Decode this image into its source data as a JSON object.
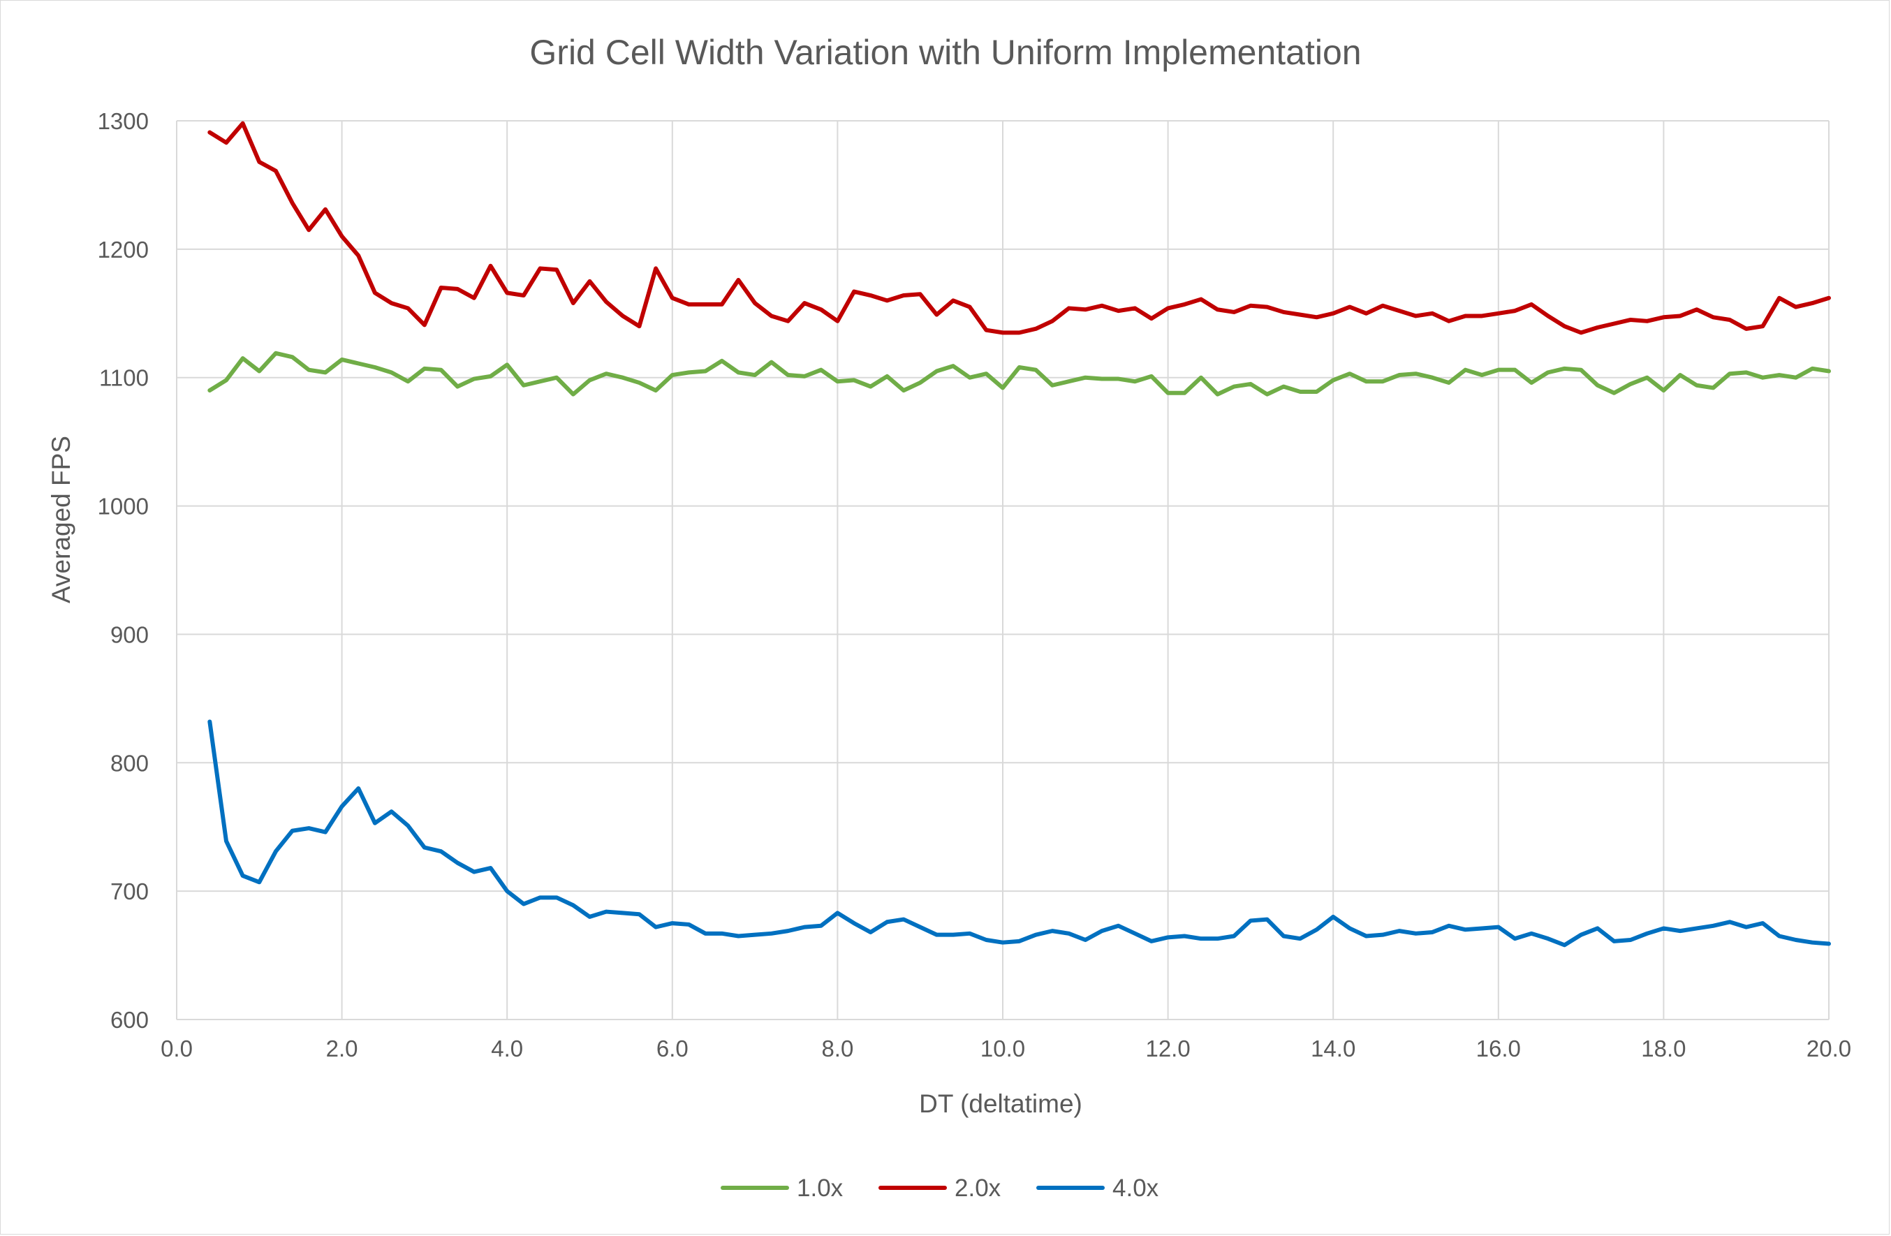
{
  "chart_data": {
    "type": "line",
    "title": "Grid Cell Width Variation with Uniform Implementation",
    "xlabel": "DT (deltatime)",
    "ylabel": "Averaged FPS",
    "xlim": [
      0,
      20
    ],
    "ylim": [
      600,
      1300
    ],
    "xticks": [
      "0.0",
      "2.0",
      "4.0",
      "6.0",
      "8.0",
      "10.0",
      "12.0",
      "14.0",
      "16.0",
      "18.0",
      "20.0"
    ],
    "yticks": [
      "600",
      "700",
      "800",
      "900",
      "1000",
      "1100",
      "1200",
      "1300"
    ],
    "grid": true,
    "legend_position": "bottom",
    "x": [
      0.4,
      0.6,
      0.8,
      1.0,
      1.2,
      1.4,
      1.6,
      1.8,
      2.0,
      2.2,
      2.4,
      2.6,
      2.8,
      3.0,
      3.2,
      3.4,
      3.6,
      3.8,
      4.0,
      4.2,
      4.4,
      4.6,
      4.8,
      5.0,
      5.2,
      5.4,
      5.6,
      5.8,
      6.0,
      6.2,
      6.4,
      6.6,
      6.8,
      7.0,
      7.2,
      7.4,
      7.6,
      7.8,
      8.0,
      8.2,
      8.4,
      8.6,
      8.8,
      9.0,
      9.2,
      9.4,
      9.6,
      9.8,
      10.0,
      10.2,
      10.4,
      10.6,
      10.8,
      11.0,
      11.2,
      11.4,
      11.6,
      11.8,
      12.0,
      12.2,
      12.4,
      12.6,
      12.8,
      13.0,
      13.2,
      13.4,
      13.6,
      13.8,
      14.0,
      14.2,
      14.4,
      14.6,
      14.8,
      15.0,
      15.2,
      15.4,
      15.6,
      15.8,
      16.0,
      16.2,
      16.4,
      16.6,
      16.8,
      17.0,
      17.2,
      17.4,
      17.6,
      17.8,
      18.0,
      18.2,
      18.4,
      18.6,
      18.8,
      19.0,
      19.2,
      19.4,
      19.6,
      19.8,
      20.0
    ],
    "series": [
      {
        "name": "1.0x",
        "color": "#70ad47",
        "values": [
          1090,
          1098,
          1115,
          1105,
          1119,
          1116,
          1106,
          1104,
          1114,
          1111,
          1108,
          1104,
          1097,
          1107,
          1106,
          1093,
          1099,
          1101,
          1110,
          1094,
          1097,
          1100,
          1087,
          1098,
          1103,
          1100,
          1096,
          1090,
          1102,
          1104,
          1105,
          1113,
          1104,
          1102,
          1112,
          1102,
          1101,
          1106,
          1097,
          1098,
          1093,
          1101,
          1090,
          1096,
          1105,
          1109,
          1100,
          1103,
          1092,
          1108,
          1106,
          1094,
          1097,
          1100,
          1099,
          1099,
          1097,
          1101,
          1088,
          1088,
          1100,
          1087,
          1093,
          1095,
          1087,
          1093,
          1089,
          1089,
          1098,
          1103,
          1097,
          1097,
          1102,
          1103,
          1100,
          1096,
          1106,
          1102,
          1106,
          1106,
          1096,
          1104,
          1107,
          1106,
          1094,
          1088,
          1095,
          1100,
          1090,
          1102,
          1094,
          1092,
          1103,
          1104,
          1100,
          1102,
          1100,
          1107,
          1105
        ]
      },
      {
        "name": "2.0x",
        "color": "#c00000",
        "values": [
          1291,
          1283,
          1298,
          1268,
          1261,
          1236,
          1215,
          1231,
          1210,
          1195,
          1166,
          1158,
          1154,
          1141,
          1170,
          1169,
          1162,
          1187,
          1166,
          1164,
          1185,
          1184,
          1158,
          1175,
          1159,
          1148,
          1140,
          1185,
          1162,
          1157,
          1157,
          1157,
          1176,
          1158,
          1148,
          1144,
          1158,
          1153,
          1144,
          1167,
          1164,
          1160,
          1164,
          1165,
          1149,
          1160,
          1155,
          1137,
          1135,
          1135,
          1138,
          1144,
          1154,
          1153,
          1156,
          1152,
          1154,
          1146,
          1154,
          1157,
          1161,
          1153,
          1151,
          1156,
          1155,
          1151,
          1149,
          1147,
          1150,
          1155,
          1150,
          1156,
          1152,
          1148,
          1150,
          1144,
          1148,
          1148,
          1150,
          1152,
          1157,
          1148,
          1140,
          1135,
          1139,
          1142,
          1145,
          1144,
          1147,
          1148,
          1153,
          1147,
          1145,
          1138,
          1140,
          1162,
          1155,
          1158,
          1162
        ]
      },
      {
        "name": "4.0x",
        "color": "#0070c0",
        "values": [
          832,
          739,
          712,
          707,
          731,
          747,
          749,
          746,
          766,
          780,
          753,
          762,
          751,
          734,
          731,
          722,
          715,
          718,
          700,
          690,
          695,
          695,
          689,
          680,
          684,
          683,
          682,
          672,
          675,
          674,
          667,
          667,
          665,
          666,
          667,
          669,
          672,
          673,
          683,
          675,
          668,
          676,
          678,
          672,
          666,
          666,
          667,
          662,
          660,
          661,
          666,
          669,
          667,
          662,
          669,
          673,
          667,
          661,
          664,
          665,
          663,
          663,
          665,
          677,
          678,
          665,
          663,
          670,
          680,
          671,
          665,
          666,
          669,
          667,
          668,
          673,
          670,
          671,
          672,
          663,
          667,
          663,
          658,
          666,
          671,
          661,
          662,
          667,
          671,
          669,
          671,
          673,
          676,
          672,
          675,
          665,
          662,
          660,
          659
        ]
      }
    ]
  }
}
